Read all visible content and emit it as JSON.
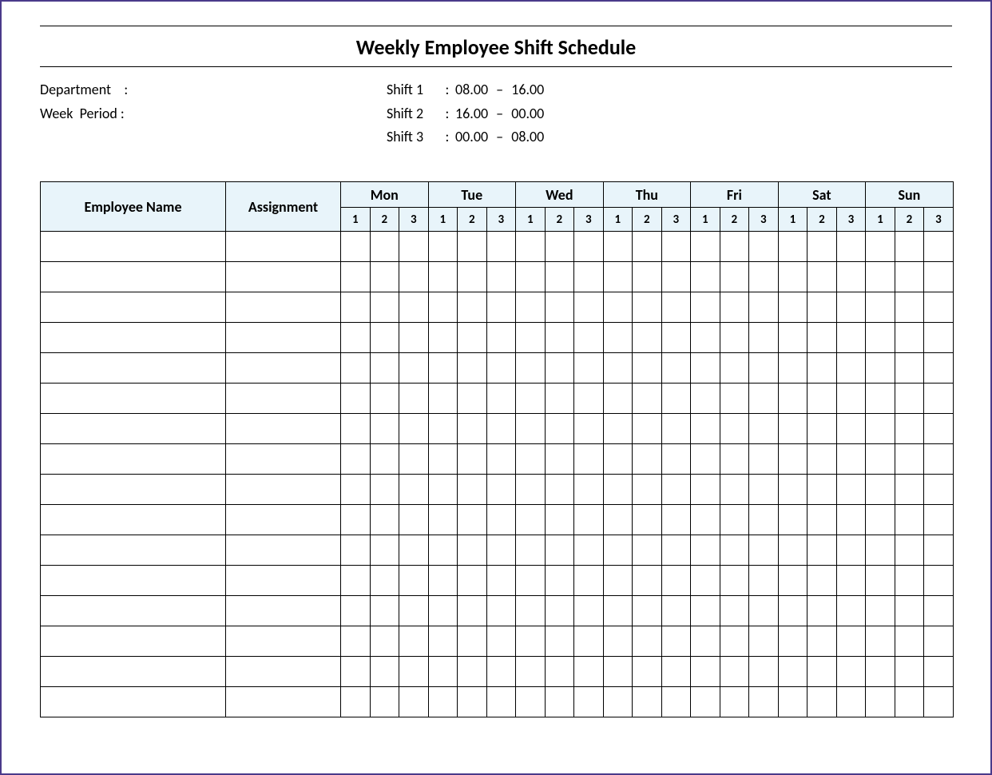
{
  "title": "Weekly Employee Shift Schedule",
  "meta": {
    "department_label": "Department    :",
    "week_period_label": "Week  Period :",
    "shifts": [
      {
        "label": "Shift 1",
        "from": "08.00",
        "to": "16.00"
      },
      {
        "label": "Shift 2",
        "from": "16.00",
        "to": "00.00"
      },
      {
        "label": "Shift 3",
        "from": "00.00",
        "to": "08.00"
      }
    ]
  },
  "table": {
    "type": "table",
    "header_bg": "#e8f4fa",
    "border_color": "#000000",
    "columns": {
      "employee_name": "Employee Name",
      "assignment": "Assignment",
      "days": [
        "Mon",
        "Tue",
        "Wed",
        "Thu",
        "Fri",
        "Sat",
        "Sun"
      ],
      "sub_shifts": [
        "1",
        "2",
        "3"
      ]
    },
    "rows": 16
  }
}
